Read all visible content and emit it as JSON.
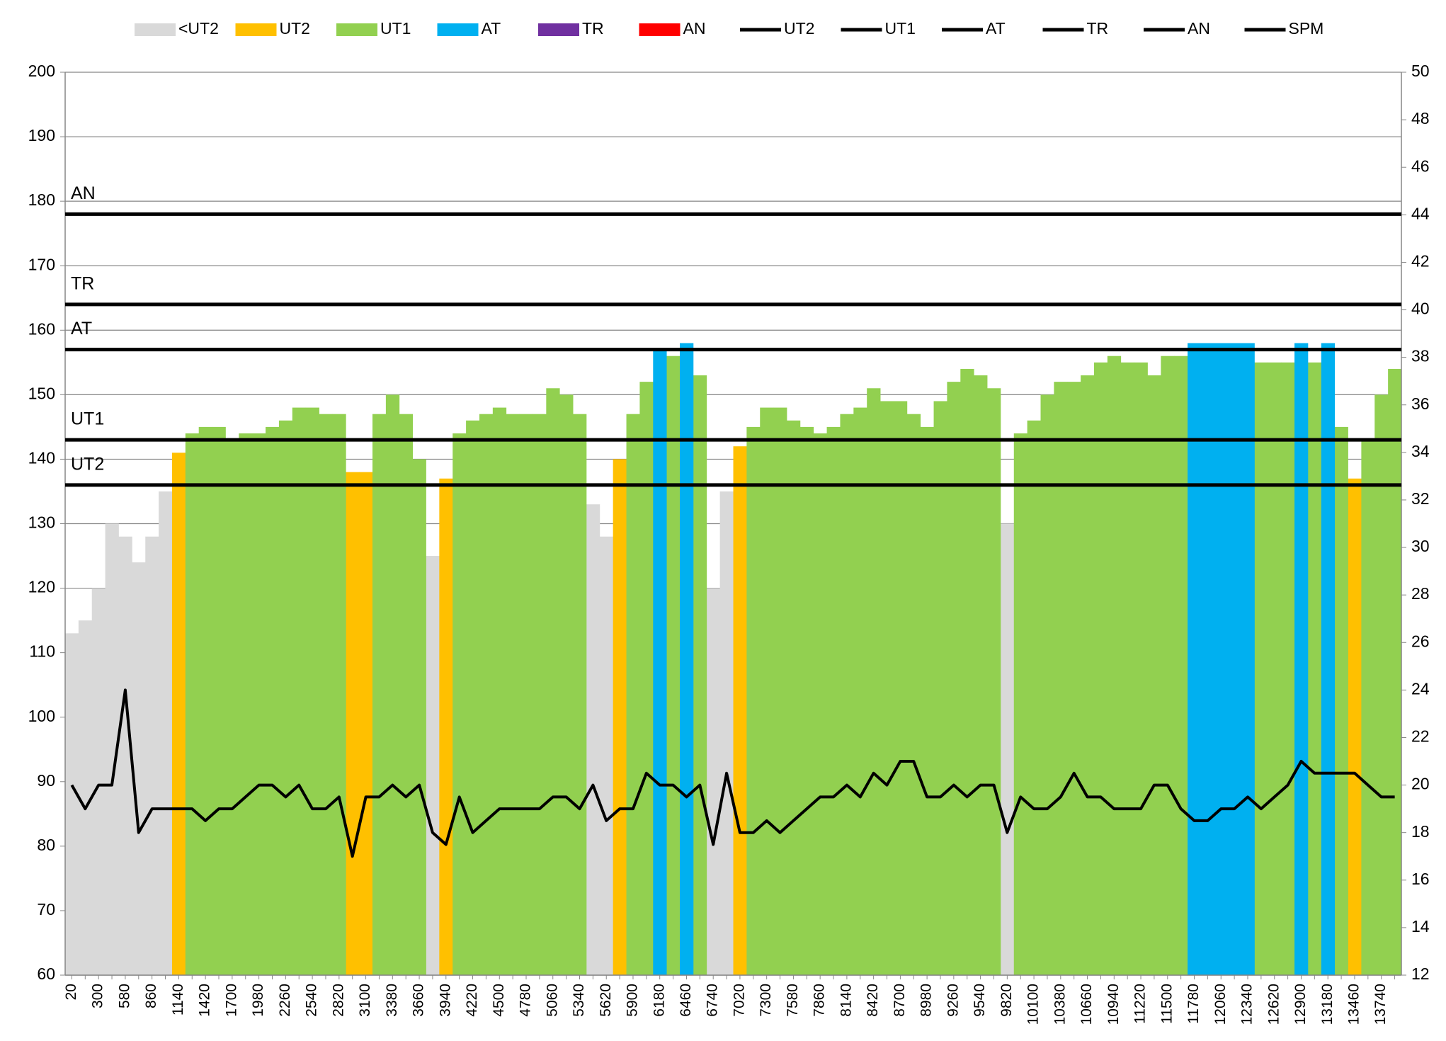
{
  "chart_data": {
    "type": "bar",
    "categories": [
      20,
      null,
      300,
      null,
      580,
      null,
      860,
      null,
      1140,
      null,
      1420,
      null,
      1700,
      null,
      1980,
      null,
      2260,
      null,
      2540,
      null,
      2820,
      null,
      3100,
      null,
      3380,
      null,
      3660,
      null,
      3940,
      null,
      4220,
      null,
      4500,
      null,
      4780,
      null,
      5060,
      null,
      5340,
      null,
      5620,
      null,
      5900,
      null,
      6180,
      null,
      6460,
      null,
      6740,
      null,
      7020,
      null,
      7300,
      null,
      7580,
      null,
      7860,
      null,
      8140,
      null,
      8420,
      null,
      8700,
      null,
      8980,
      null,
      9260,
      null,
      9540,
      null,
      9820,
      null,
      10100,
      null,
      10380,
      null,
      10660,
      null,
      10940,
      null,
      11220,
      null,
      11500,
      null,
      11780,
      null,
      12060,
      null,
      12340,
      null,
      12620,
      null,
      12900,
      null,
      13180,
      null,
      13460,
      null,
      13740,
      null
    ],
    "ylim": [
      60,
      200
    ],
    "yticks": [
      60,
      70,
      80,
      90,
      100,
      110,
      120,
      130,
      140,
      150,
      160,
      170,
      180,
      190,
      200
    ],
    "y2lim": [
      12,
      50
    ],
    "y2ticks": [
      12,
      14,
      16,
      18,
      20,
      22,
      24,
      26,
      28,
      30,
      32,
      34,
      36,
      38,
      40,
      42,
      44,
      46,
      48,
      50
    ],
    "grid": true,
    "legend": "top",
    "series": [
      {
        "name": "<UT2",
        "color": "#d9d9d9",
        "values": [
          113,
          115,
          120,
          130,
          128,
          124,
          128,
          135,
          null,
          null,
          null,
          null,
          null,
          null,
          null,
          null,
          null,
          null,
          null,
          null,
          null,
          null,
          null,
          null,
          null,
          null,
          null,
          125,
          null,
          null,
          null,
          null,
          null,
          null,
          null,
          null,
          null,
          null,
          null,
          133,
          128,
          null,
          null,
          null,
          null,
          null,
          null,
          null,
          120,
          135,
          null,
          null,
          null,
          null,
          null,
          null,
          null,
          null,
          null,
          null,
          null,
          null,
          null,
          null,
          null,
          null,
          null,
          null,
          null,
          null,
          130,
          null,
          null,
          null,
          null,
          null,
          null,
          null,
          null,
          null,
          null,
          null,
          null,
          null,
          null,
          null,
          null,
          null,
          null,
          null,
          null,
          null,
          null,
          null,
          null,
          null,
          null,
          null,
          null,
          null
        ]
      },
      {
        "name": "UT2",
        "color": "#ffc000",
        "values": [
          null,
          null,
          null,
          null,
          null,
          null,
          null,
          null,
          141,
          null,
          null,
          null,
          null,
          null,
          null,
          null,
          null,
          null,
          null,
          null,
          null,
          138,
          138,
          null,
          null,
          null,
          null,
          null,
          137,
          null,
          null,
          null,
          null,
          null,
          null,
          null,
          null,
          null,
          null,
          null,
          null,
          140,
          null,
          null,
          null,
          null,
          null,
          null,
          null,
          null,
          142,
          null,
          null,
          null,
          null,
          null,
          null,
          null,
          null,
          null,
          null,
          null,
          null,
          null,
          null,
          null,
          null,
          null,
          null,
          null,
          null,
          null,
          null,
          null,
          null,
          null,
          null,
          null,
          null,
          null,
          null,
          null,
          null,
          null,
          null,
          null,
          null,
          null,
          null,
          null,
          null,
          null,
          null,
          null,
          null,
          null,
          137,
          null,
          null,
          null
        ]
      },
      {
        "name": "UT1",
        "color": "#92d050",
        "values": [
          null,
          null,
          null,
          null,
          null,
          null,
          null,
          null,
          null,
          144,
          145,
          145,
          143,
          144,
          144,
          145,
          146,
          148,
          148,
          147,
          147,
          null,
          null,
          147,
          150,
          147,
          140,
          null,
          null,
          144,
          146,
          147,
          148,
          147,
          147,
          147,
          151,
          150,
          147,
          null,
          null,
          null,
          147,
          152,
          null,
          156,
          null,
          153,
          null,
          null,
          null,
          145,
          148,
          148,
          146,
          145,
          144,
          145,
          147,
          148,
          151,
          149,
          149,
          147,
          145,
          149,
          152,
          154,
          153,
          151,
          null,
          144,
          146,
          150,
          152,
          152,
          153,
          155,
          156,
          155,
          155,
          153,
          156,
          156,
          null,
          null,
          null,
          null,
          null,
          155,
          155,
          155,
          null,
          155,
          null,
          145,
          null,
          143,
          150,
          154
        ]
      },
      {
        "name": "AT",
        "color": "#00b0f0",
        "values": [
          null,
          null,
          null,
          null,
          null,
          null,
          null,
          null,
          null,
          null,
          null,
          null,
          null,
          null,
          null,
          null,
          null,
          null,
          null,
          null,
          null,
          null,
          null,
          null,
          null,
          null,
          null,
          null,
          null,
          null,
          null,
          null,
          null,
          null,
          null,
          null,
          null,
          null,
          null,
          null,
          null,
          null,
          null,
          null,
          157,
          null,
          158,
          null,
          null,
          null,
          null,
          null,
          null,
          null,
          null,
          null,
          null,
          null,
          null,
          null,
          null,
          null,
          null,
          null,
          null,
          null,
          null,
          null,
          null,
          null,
          null,
          null,
          null,
          null,
          null,
          null,
          null,
          null,
          null,
          null,
          null,
          null,
          null,
          null,
          158,
          158,
          158,
          158,
          158,
          null,
          null,
          null,
          158,
          null,
          158,
          null,
          null,
          null,
          null,
          null
        ]
      },
      {
        "name": "TR",
        "color": "#7030a0",
        "values": [
          null,
          null,
          null,
          null,
          null,
          null,
          null,
          null,
          null,
          null,
          null,
          null,
          null,
          null,
          null,
          null,
          null,
          null,
          null,
          null,
          null,
          null,
          null,
          null,
          null,
          null,
          null,
          null,
          null,
          null,
          null,
          null,
          null,
          null,
          null,
          null,
          null,
          null,
          null,
          null,
          null,
          null,
          null,
          null,
          null,
          null,
          null,
          null,
          null,
          null,
          null,
          null,
          null,
          null,
          null,
          null,
          null,
          null,
          null,
          null,
          null,
          null,
          null,
          null,
          null,
          null,
          null,
          null,
          null,
          null,
          null,
          null,
          null,
          null,
          null,
          null,
          null,
          null,
          null,
          null,
          null,
          null,
          null,
          null,
          null,
          null,
          null,
          null,
          null,
          null,
          null,
          null,
          null,
          null,
          null,
          null,
          null,
          null,
          null,
          null
        ]
      },
      {
        "name": "AN",
        "color": "#ff0000",
        "values": [
          null,
          null,
          null,
          null,
          null,
          null,
          null,
          null,
          null,
          null,
          null,
          null,
          null,
          null,
          null,
          null,
          null,
          null,
          null,
          null,
          null,
          null,
          null,
          null,
          null,
          null,
          null,
          null,
          null,
          null,
          null,
          null,
          null,
          null,
          null,
          null,
          null,
          null,
          null,
          null,
          null,
          null,
          null,
          null,
          null,
          null,
          null,
          null,
          null,
          null,
          null,
          null,
          null,
          null,
          null,
          null,
          null,
          null,
          null,
          null,
          null,
          null,
          null,
          null,
          null,
          null,
          null,
          null,
          null,
          null,
          null,
          null,
          null,
          null,
          null,
          null,
          null,
          null,
          null,
          null,
          null,
          null,
          null,
          null,
          null,
          null,
          null,
          null,
          null,
          null,
          null,
          null,
          null,
          null,
          null,
          null,
          null,
          null,
          null,
          null
        ]
      },
      {
        "name": "UT2",
        "color": "#000000",
        "value": 136
      },
      {
        "name": "UT1",
        "color": "#000000",
        "value": 143
      },
      {
        "name": "AT",
        "color": "#000000",
        "value": 157
      },
      {
        "name": "TR",
        "color": "#000000",
        "value": 164
      },
      {
        "name": "AN",
        "color": "#000000",
        "value": 178
      },
      {
        "name": "SPM",
        "color": "#000000",
        "axis": "y2",
        "values": [
          20,
          19,
          20,
          20,
          24,
          18,
          19,
          19,
          19,
          19,
          18.5,
          19,
          19,
          19.5,
          20,
          20,
          19.5,
          20,
          19,
          19,
          19.5,
          17,
          19.5,
          19.5,
          20,
          19.5,
          20,
          18,
          17.5,
          19.5,
          18,
          18.5,
          19,
          19,
          19,
          19,
          19.5,
          19.5,
          19,
          20,
          18.5,
          19,
          19,
          20.5,
          20,
          20,
          19.5,
          20,
          17.5,
          20.5,
          18,
          18,
          18.5,
          18,
          18.5,
          19,
          19.5,
          19.5,
          20,
          19.5,
          20.5,
          20,
          21,
          21,
          19.5,
          19.5,
          20,
          19.5,
          20,
          20,
          18,
          19.5,
          19,
          19,
          19.5,
          20.5,
          19.5,
          19.5,
          19,
          19,
          19,
          20,
          20,
          19,
          18.5,
          18.5,
          19,
          19,
          19.5,
          19,
          19.5,
          20,
          21,
          20.5,
          20.5,
          20.5,
          20.5,
          20,
          19.5,
          19.5
        ]
      }
    ]
  }
}
